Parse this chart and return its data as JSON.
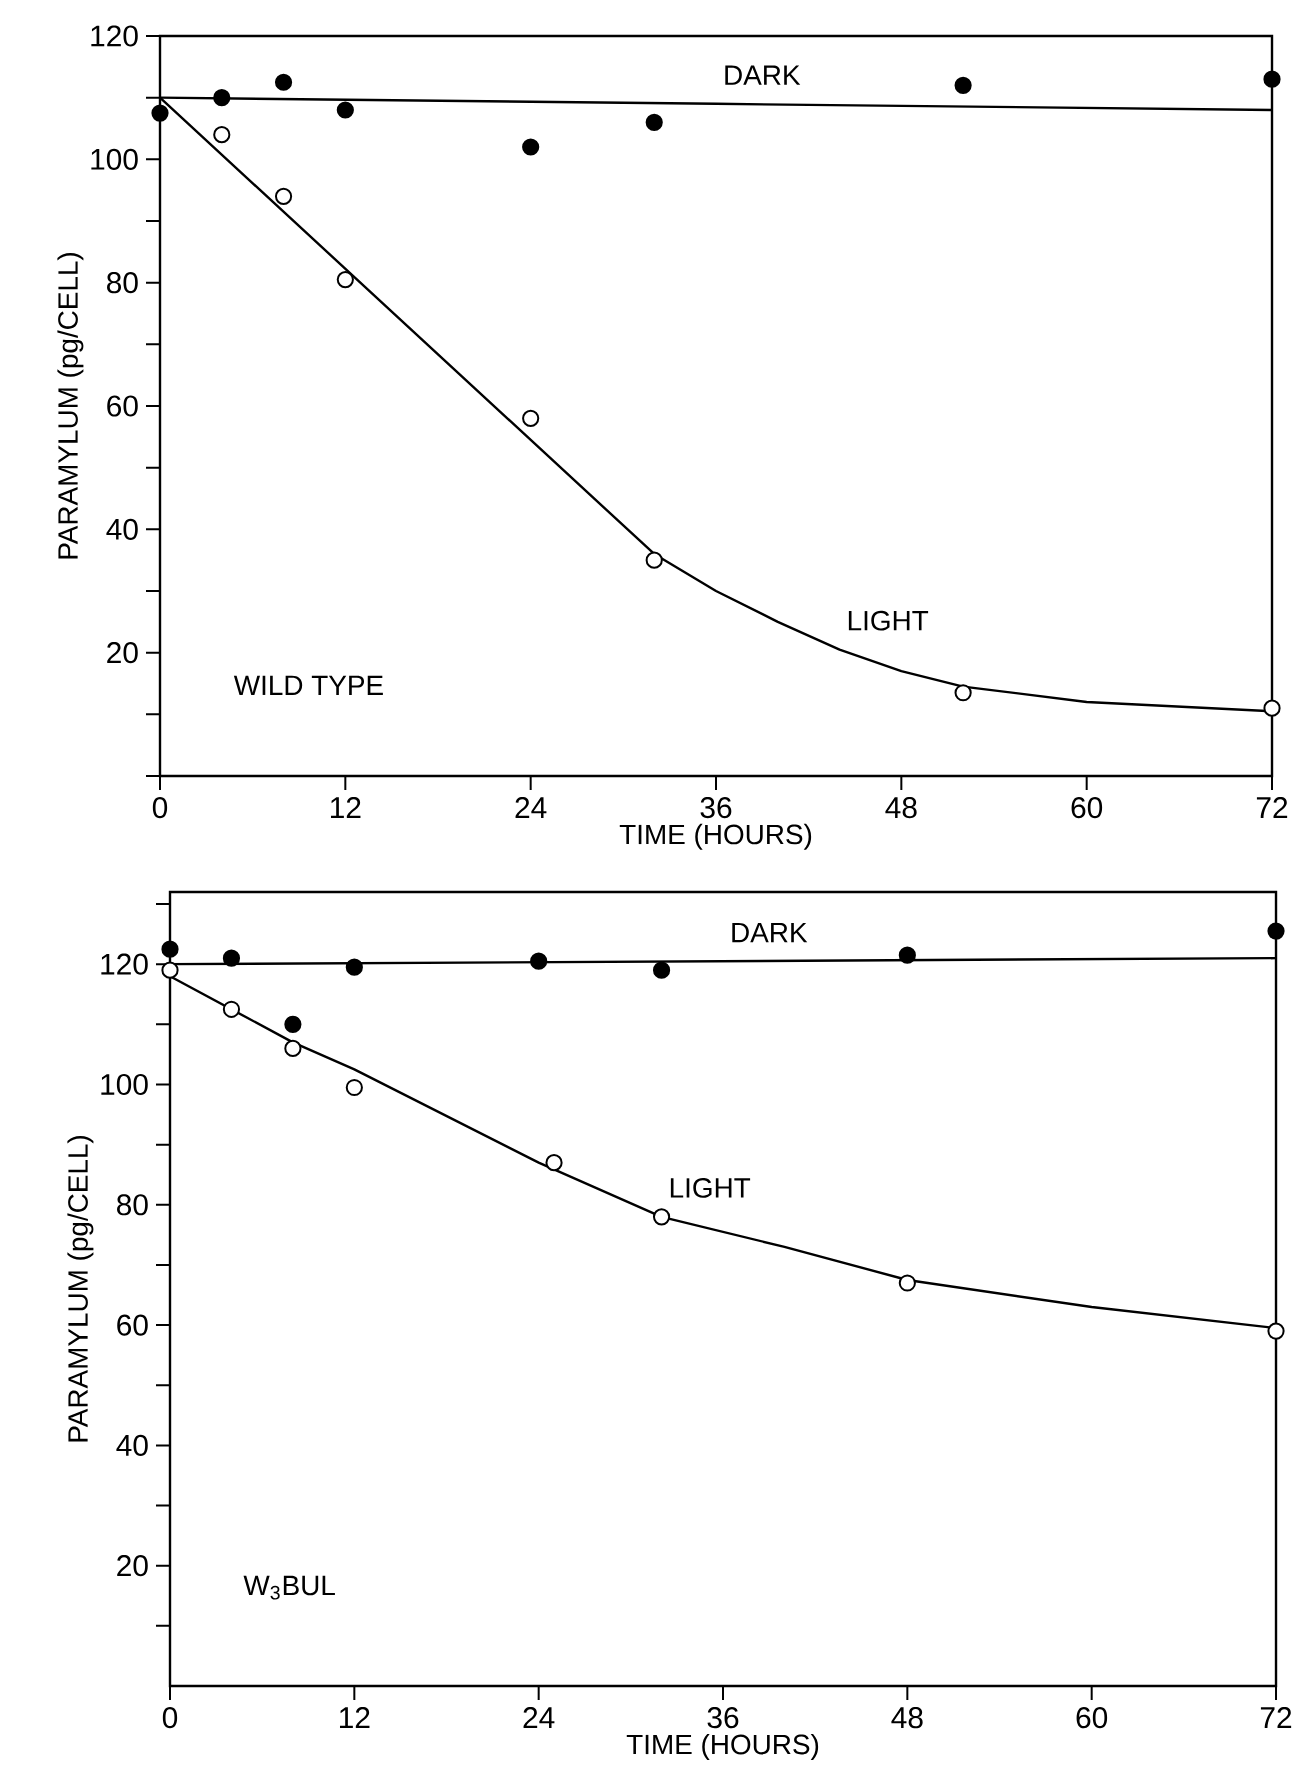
{
  "chart_data": [
    {
      "type": "line",
      "title": "WILD TYPE",
      "xlabel": "TIME (HOURS)",
      "ylabel": "PARAMYLUM (pg/CELL)",
      "line_style": "solid",
      "xlim": [
        0,
        72
      ],
      "ylim": [
        0,
        120
      ],
      "xticks": [
        0,
        12,
        24,
        36,
        48,
        60,
        72
      ],
      "yticks": [
        {
          "value": 0,
          "label": null
        },
        {
          "value": 10,
          "label": null
        },
        20,
        {
          "value": 30,
          "label": null
        },
        40,
        {
          "value": 50,
          "label": null
        },
        60,
        {
          "value": 70,
          "label": null
        },
        80,
        {
          "value": 90,
          "label": null
        },
        100,
        {
          "value": 110,
          "label": null
        },
        120
      ],
      "series": [
        {
          "type": "scatter",
          "color": "#000000",
          "x": [
            0,
            4,
            8,
            12,
            24,
            32,
            52,
            72
          ],
          "values": [
            107.5,
            110,
            112.5,
            108,
            102,
            106,
            112,
            113
          ]
        },
        {
          "type": "scatter",
          "color": "#ffffff",
          "x": [
            4,
            8,
            12,
            24,
            32,
            52,
            72
          ],
          "values": [
            104,
            94,
            80.5,
            58,
            35,
            13.5,
            11
          ]
        },
        {
          "name": "DARK",
          "color": "#000000",
          "x": [
            0,
            36,
            72
          ],
          "values": [
            110,
            109,
            108
          ]
        },
        {
          "name": "LIGHT",
          "color": "#000000",
          "x": [
            0,
            32,
            36,
            40,
            44,
            48,
            52,
            60,
            72
          ],
          "values": [
            110,
            36,
            30,
            25,
            20.5,
            17,
            14.5,
            12,
            10.5
          ]
        }
      ]
    },
    {
      "type": "line",
      "title": "W$_{3}$BUL",
      "xlabel": "TIME (HOURS)",
      "ylabel": "PARAMYLUM (pg/CELL)",
      "line_style": "solid",
      "xlim": [
        0,
        72
      ],
      "ylim": [
        0,
        132
      ],
      "xticks": [
        0,
        12,
        24,
        36,
        48,
        60,
        72
      ],
      "yticks": [
        {
          "value": 10,
          "label": null
        },
        20,
        {
          "value": 30,
          "label": null
        },
        40,
        {
          "value": 50,
          "label": null
        },
        60,
        {
          "value": 70,
          "label": null
        },
        80,
        {
          "value": 90,
          "label": null
        },
        100,
        {
          "value": 110,
          "label": null
        },
        120,
        {
          "value": 130,
          "label": null
        }
      ],
      "series": [
        {
          "type": "scatter",
          "color": "#000000",
          "x": [
            0,
            4,
            8,
            12,
            24,
            32,
            48,
            72
          ],
          "values": [
            122.5,
            121,
            110,
            119.5,
            120.5,
            119,
            121.5,
            125.5
          ]
        },
        {
          "type": "scatter",
          "color": "#ffffff",
          "x": [
            0,
            4,
            8,
            12,
            25,
            32,
            48,
            72
          ],
          "values": [
            119,
            112.5,
            106,
            99.5,
            87,
            78,
            67,
            59
          ]
        },
        {
          "name": "DARK",
          "color": "#000000",
          "x": [
            0,
            36,
            72
          ],
          "values": [
            120,
            120.5,
            121
          ]
        },
        {
          "name": "LIGHT",
          "color": "#000000",
          "x": [
            0,
            4,
            8,
            12,
            24,
            32,
            40,
            48,
            60,
            72
          ],
          "values": [
            118,
            112.5,
            107,
            102.5,
            87,
            78,
            73,
            67.5,
            63,
            59.5
          ]
        }
      ]
    }
  ]
}
